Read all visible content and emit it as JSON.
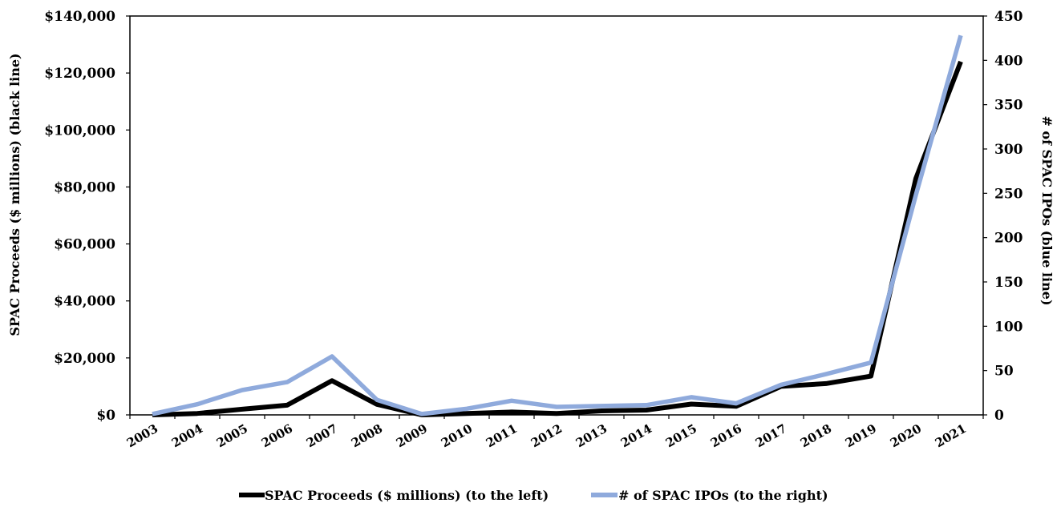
{
  "chart_data": {
    "type": "line",
    "title": "",
    "x": [
      "2003",
      "2004",
      "2005",
      "2006",
      "2007",
      "2008",
      "2009",
      "2010",
      "2011",
      "2012",
      "2013",
      "2014",
      "2015",
      "2016",
      "2017",
      "2018",
      "2019",
      "2020",
      "2021"
    ],
    "series": [
      {
        "name": "SPAC Proceeds ($ millions) (to the left)",
        "axis": "left",
        "color": "#000000",
        "values": [
          0,
          500,
          2000,
          3400,
          12000,
          3700,
          0,
          500,
          1000,
          500,
          1400,
          1700,
          3800,
          3000,
          10000,
          11000,
          13600,
          83000,
          124000
        ]
      },
      {
        "name": "# of SPAC IPOs (to the right)",
        "axis": "right",
        "color": "#8FAADC",
        "values": [
          1,
          12,
          28,
          37,
          66,
          17,
          1,
          7,
          16,
          9,
          10,
          11,
          20,
          13,
          34,
          46,
          59,
          248,
          428
        ]
      }
    ],
    "left_axis": {
      "label": "SPAC Proceeds ($ millions) (black line)",
      "ylim": [
        0,
        140000
      ],
      "ticks": [
        "$0",
        "$20,000",
        "$40,000",
        "$60,000",
        "$80,000",
        "$100,000",
        "$120,000",
        "$140,000"
      ]
    },
    "right_axis": {
      "label": "# of SPAC IPOs (blue line)",
      "ylim": [
        0,
        450
      ],
      "ticks": [
        "0",
        "50",
        "100",
        "150",
        "200",
        "250",
        "300",
        "350",
        "400",
        "450"
      ]
    },
    "grid": false,
    "legend_position": "bottom"
  }
}
